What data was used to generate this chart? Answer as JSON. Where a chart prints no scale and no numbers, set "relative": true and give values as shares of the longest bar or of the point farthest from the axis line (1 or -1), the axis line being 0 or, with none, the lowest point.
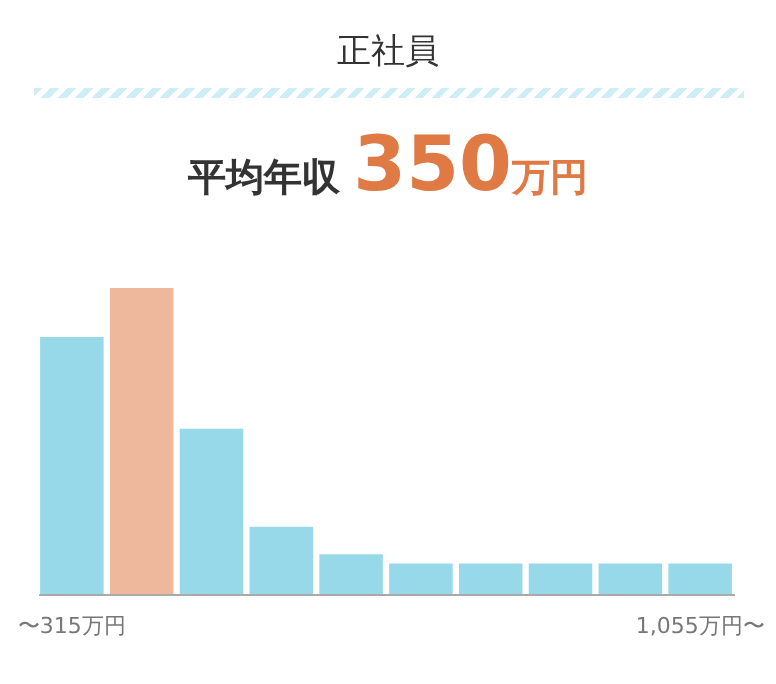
{
  "chart_data": {
    "type": "bar",
    "title": "正社員",
    "subtitle": "平均年収 350万円",
    "categories": [
      "〜315万円",
      null,
      null,
      null,
      null,
      null,
      null,
      null,
      null,
      "1,055万円〜"
    ],
    "values": [
      0.84,
      1,
      0.54,
      0.22,
      0.13,
      0.1,
      0.1,
      0.1,
      0.1,
      0.1
    ],
    "colors": [
      "#98d9e9",
      "#eeb89c",
      "#98d9e9",
      "#98d9e9",
      "#98d9e9",
      "#98d9e9",
      "#98d9e9",
      "#98d9e9",
      "#98d9e9",
      "#98d9e9"
    ],
    "relative": true
  }
}
